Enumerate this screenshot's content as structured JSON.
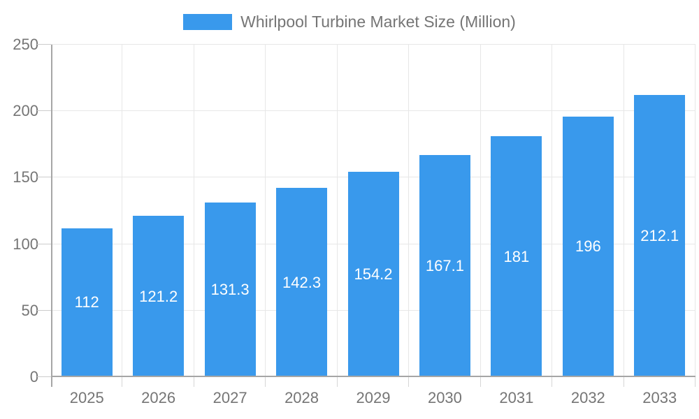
{
  "legend": {
    "label": "Whirlpool Turbine Market Size (Million)"
  },
  "chart_data": {
    "type": "bar",
    "title": "Whirlpool Turbine Market Size (Million)",
    "categories": [
      "2025",
      "2026",
      "2027",
      "2028",
      "2029",
      "2030",
      "2031",
      "2032",
      "2033"
    ],
    "values": [
      112,
      121.2,
      131.3,
      142.3,
      154.2,
      167.1,
      181,
      196,
      212.1
    ],
    "xlabel": "",
    "ylabel": "",
    "ylim": [
      0,
      250
    ],
    "yticks": [
      0,
      50,
      100,
      150,
      200,
      250
    ],
    "grid": true,
    "legend_position": "top",
    "value_labels": "inside-center-white",
    "bar_color": "#3999ec",
    "value_label_color": "#ffffff",
    "axis_text_color": "#757575",
    "axis_line_color": "#a6a6a6",
    "grid_color": "#e7e7e7",
    "tick_color": "#cccccc"
  }
}
